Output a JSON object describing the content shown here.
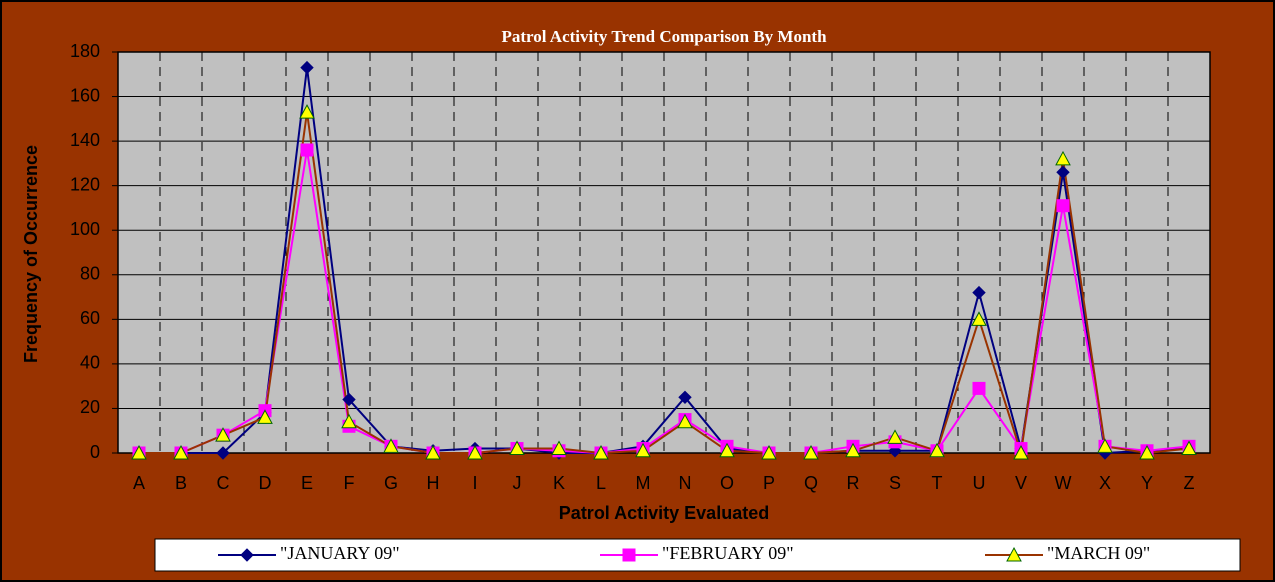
{
  "chart_data": {
    "type": "line",
    "title": "Patrol Activity Trend Comparison By Month",
    "x_label": "Patrol Activity Evaluated",
    "y_label": "Frequency of Occurrence",
    "categories": [
      "A",
      "B",
      "C",
      "D",
      "E",
      "F",
      "G",
      "H",
      "I",
      "J",
      "K",
      "L",
      "M",
      "N",
      "O",
      "P",
      "Q",
      "R",
      "S",
      "T",
      "U",
      "V",
      "W",
      "X",
      "Y",
      "Z"
    ],
    "series": [
      {
        "name": "\"JANUARY 09\"",
        "color": "#000080",
        "marker": "diamond",
        "marker_color": "#000080",
        "values": [
          0,
          0,
          0,
          18,
          173,
          24,
          3,
          1,
          2,
          2,
          0,
          0,
          3,
          25,
          2,
          0,
          0,
          1,
          1,
          1,
          72,
          2,
          126,
          0,
          1,
          2
        ]
      },
      {
        "name": "\"FEBRUARY 09\"",
        "color": "#ff00ff",
        "marker": "square",
        "marker_color": "#ff00ff",
        "values": [
          0,
          0,
          8,
          19,
          136,
          12,
          3,
          0,
          0,
          2,
          1,
          0,
          2,
          15,
          3,
          0,
          0,
          3,
          5,
          1,
          29,
          2,
          111,
          3,
          1,
          3
        ]
      },
      {
        "name": "\"MARCH 09\"",
        "color": "#993300",
        "marker": "triangle",
        "marker_color": "#ffff00",
        "values": [
          0,
          0,
          8,
          16,
          153,
          14,
          3,
          0,
          0,
          2,
          2,
          0,
          1,
          14,
          1,
          0,
          0,
          1,
          7,
          1,
          60,
          0,
          132,
          3,
          0,
          2
        ]
      }
    ],
    "ylim": [
      0,
      180
    ],
    "yticks": [
      0,
      20,
      40,
      60,
      80,
      100,
      120,
      140,
      160,
      180
    ],
    "grid": true,
    "background": "#993300",
    "plot_background": "#c0c0c0"
  }
}
